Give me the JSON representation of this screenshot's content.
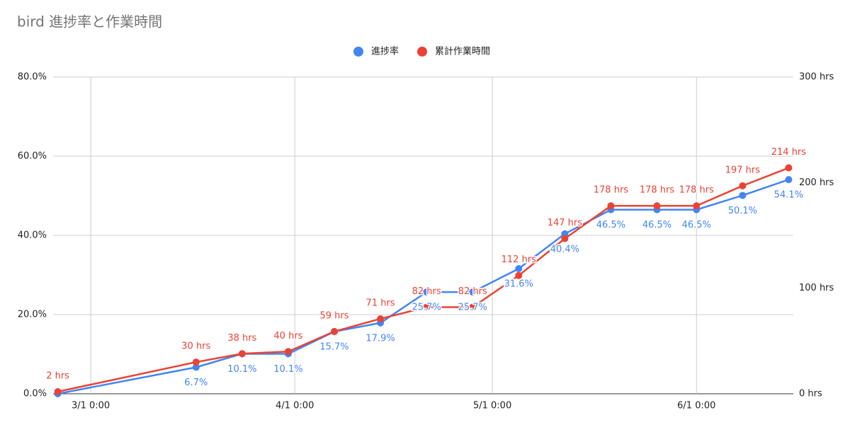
{
  "chart_data": {
    "type": "line",
    "title": "bird 進捗率と作業時間",
    "x": [
      "2/24 0:00",
      "3/17 0:00",
      "3/24 0:00",
      "3/31 0:00",
      "4/7 0:00",
      "4/14 0:00",
      "4/21 0:00",
      "4/28 0:00",
      "5/5 0:00",
      "5/12 0:00",
      "5/19 0:00",
      "5/26 0:00",
      "6/1 0:00",
      "6/8 0:00",
      "6/15 0:00"
    ],
    "xlim": [
      "2/23 7:00",
      "6/15 17:00"
    ],
    "xticks": [
      "3/1 0:00",
      "4/1 0:00",
      "5/1 0:00",
      "6/1 0:00"
    ],
    "ylim": [
      0,
      80
    ],
    "yticks": [
      {
        "value": 0,
        "label": "0.0%"
      },
      {
        "value": 20,
        "label": "20.0%"
      },
      {
        "value": 40,
        "label": "40.0%"
      },
      {
        "value": 60,
        "label": "60.0%"
      },
      {
        "value": 80,
        "label": "80.0%"
      }
    ],
    "y2lim": [
      0,
      300
    ],
    "y2ticks": [
      {
        "value": 0,
        "label": "0 hrs"
      },
      {
        "value": 100,
        "label": "100 hrs"
      },
      {
        "value": 200,
        "label": "200 hrs"
      },
      {
        "value": 300,
        "label": "300 hrs"
      }
    ],
    "grid": true,
    "legend": "top",
    "series": [
      {
        "name": "進捗率",
        "color": "#4285f4",
        "values": [
          0,
          6.7,
          10.1,
          10.1,
          15.7,
          17.9,
          25.7,
          25.7,
          31.6,
          40.4,
          46.5,
          46.5,
          46.5,
          50.1,
          54.1
        ],
        "value_labels": [
          null,
          "6.7%",
          "10.1%",
          "10.1%",
          "15.7%",
          "17.9%",
          "25.7%",
          "25.7%",
          "31.6%",
          "40.4%",
          "46.5%",
          "46.5%",
          "46.5%",
          "50.1%",
          "54.1%"
        ]
      },
      {
        "name": "累計作業時間",
        "color": "#ea4335",
        "axis": "y2",
        "values": [
          2,
          30,
          38,
          40,
          59,
          71,
          82,
          82,
          112,
          147,
          178,
          178,
          178,
          197,
          214
        ],
        "value_labels": [
          "2 hrs",
          "30 hrs",
          "38 hrs",
          "40 hrs",
          "59 hrs",
          "71 hrs",
          "82 hrs",
          "82 hrs",
          "112 hrs",
          "147 hrs",
          "178 hrs",
          "178 hrs",
          "178 hrs",
          "197 hrs",
          "214 hrs"
        ]
      }
    ]
  }
}
